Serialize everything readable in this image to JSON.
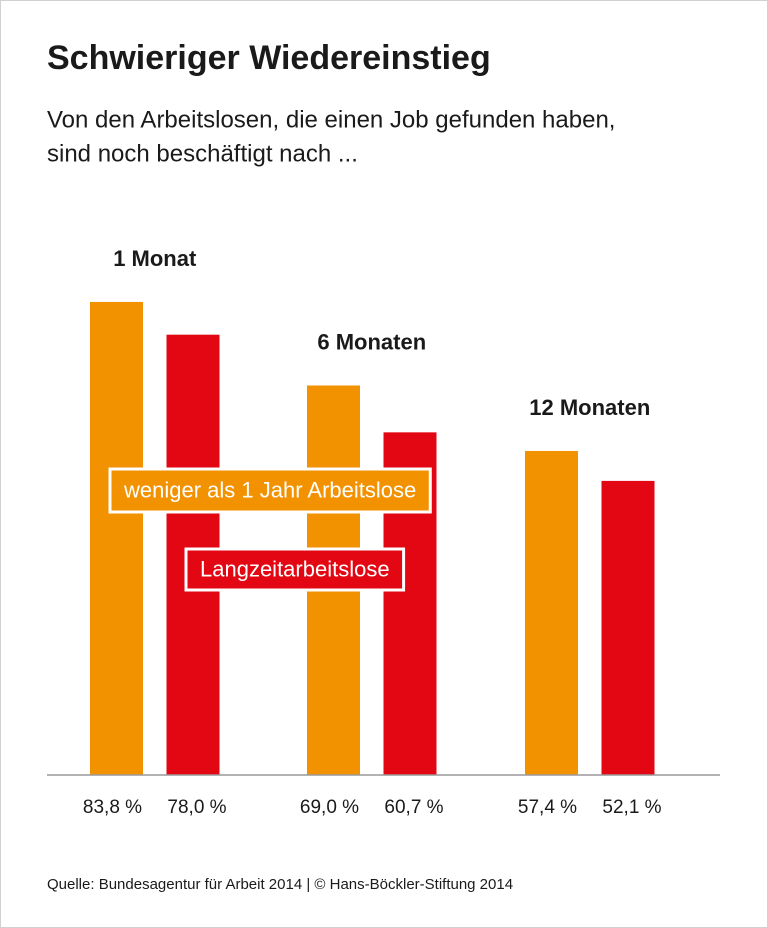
{
  "chart_data": {
    "type": "bar",
    "title": "Schwieriger Wiedereinstieg",
    "subtitle": [
      "Von den Arbeitslosen, die einen Job gefunden haben,",
      "sind noch beschäftigt nach ..."
    ],
    "categories": [
      "1 Monat",
      "6 Monaten",
      "12 Monaten"
    ],
    "series": [
      {
        "name": "weniger als 1 Jahr Arbeitslose",
        "color": "#f39200",
        "values": [
          83.8,
          69.0,
          57.4
        ],
        "value_labels": [
          "83,8 %",
          "69,0 %",
          "57,4 %"
        ]
      },
      {
        "name": "Langzeitarbeitslose",
        "color": "#e30613",
        "values": [
          78.0,
          60.7,
          52.1
        ],
        "value_labels": [
          "78,0 %",
          "60,7 %",
          "52,1 %"
        ]
      }
    ],
    "ylim": [
      0,
      100
    ],
    "source": "Quelle: Bundesagentur für Arbeit 2014 | © Hans-Böckler-Stiftung 2014"
  }
}
